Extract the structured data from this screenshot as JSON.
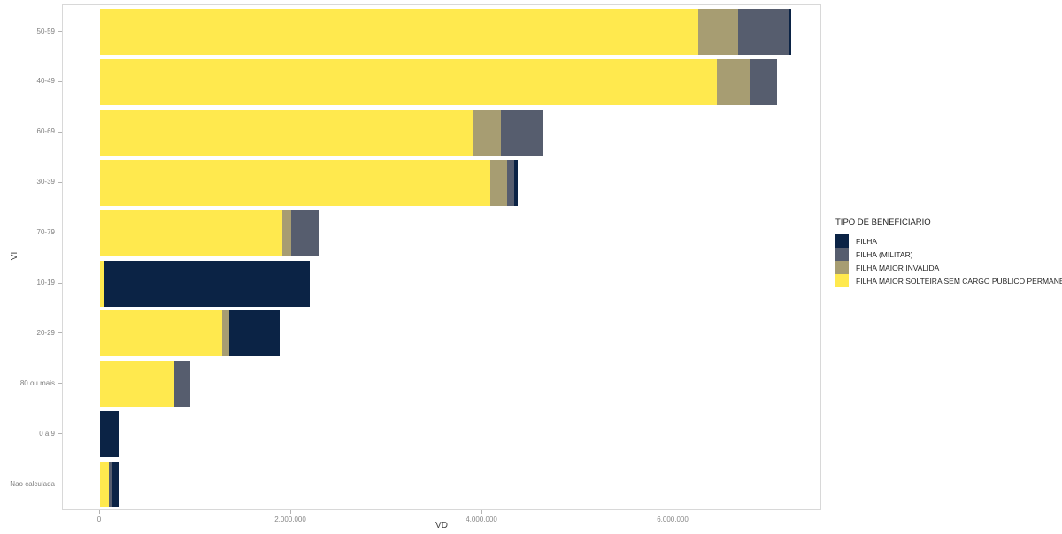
{
  "chart_data": {
    "type": "bar",
    "orientation": "horizontal",
    "stacked": true,
    "title": "",
    "xlabel": "VD",
    "ylabel": "VI",
    "grid": false,
    "legend_position": "right",
    "legend_title": "TIPO DE BENEFICIARIO",
    "categories": [
      "50-59",
      "40-49",
      "60-69",
      "30-39",
      "70-79",
      "10-19",
      "20-29",
      "80 ou mais",
      "0 a 9",
      "Nao calculada"
    ],
    "series": [
      {
        "name": "FILHA",
        "color": "#0b2345",
        "values": [
          20000,
          0,
          0,
          40000,
          0,
          2140000,
          530000,
          0,
          190000,
          60000
        ]
      },
      {
        "name": "FILHA (MILITAR)",
        "color": "#565d6e",
        "values": [
          530000,
          270000,
          440000,
          70000,
          300000,
          0,
          0,
          160000,
          0,
          40000
        ]
      },
      {
        "name": "FILHA MAIOR INVALIDA",
        "color": "#a79d72",
        "values": [
          420000,
          360000,
          280000,
          180000,
          90000,
          0,
          70000,
          0,
          0,
          0
        ]
      },
      {
        "name": "FILHA MAIOR SOLTEIRA SEM CARGO PUBLICO PERMANENTE",
        "color": "#ffe94e",
        "values": [
          6260000,
          6450000,
          3910000,
          4080000,
          1910000,
          50000,
          1280000,
          780000,
          0,
          90000
        ]
      }
    ],
    "stack_order_left_to_right": [
      "FILHA MAIOR SOLTEIRA SEM CARGO PUBLICO PERMANENTE",
      "FILHA MAIOR INVALIDA",
      "FILHA (MILITAR)",
      "FILHA"
    ],
    "x_ticks": [
      {
        "value": 0,
        "label": "0"
      },
      {
        "value": 2000000,
        "label": "2.000.000"
      },
      {
        "value": 4000000,
        "label": "4.000.000"
      },
      {
        "value": 6000000,
        "label": "6.000.000"
      }
    ],
    "x_axis_range_shown": [
      0,
      7550000
    ]
  }
}
